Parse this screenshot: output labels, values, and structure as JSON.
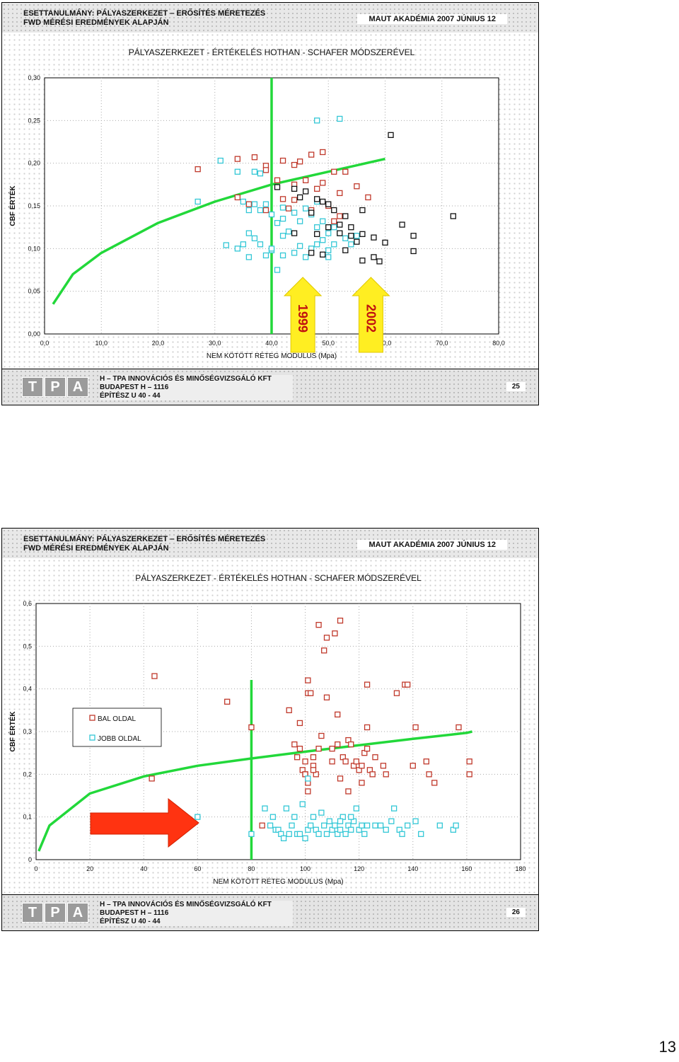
{
  "slides": [
    {
      "header_line1": "ESETTANULMÁNY: PÁLYASZERKEZET – ERŐSÍTÉS MÉRETEZÉS",
      "header_line2": "FWD MÉRÉSI EREDMÉNYEK ALAPJÁN",
      "header_right": "MAUT AKADÉMIA 2007 JÚNIUS 12",
      "footer_line1": "H – TPA INNOVÁCIÓS ÉS MINŐSÉGVIZSGÁLÓ KFT",
      "footer_line2": "BUDAPEST H – 1116",
      "footer_line3": "ÉPÍTÉSZ U 40 - 44",
      "page": "25",
      "logo": [
        "T",
        "P",
        "A"
      ]
    },
    {
      "header_line1": "ESETTANULMÁNY: PÁLYASZERKEZET – ERŐSÍTÉS MÉRETEZÉS",
      "header_line2": "FWD MÉRÉSI EREDMÉNYEK ALAPJÁN",
      "header_right": "MAUT AKADÉMIA 2007 JÚNIUS 12",
      "footer_line1": "H – TPA INNOVÁCIÓS ÉS MINŐSÉGVIZSGÁLÓ KFT",
      "footer_line2": "BUDAPEST H – 1116",
      "footer_line3": "ÉPÍTÉSZ U 40 - 44",
      "page": "26",
      "logo": [
        "T",
        "P",
        "A"
      ]
    }
  ],
  "document_page": "13",
  "colors": {
    "red": "#c0392b",
    "cyan": "#33c7d6",
    "black": "#111111",
    "green": "#22d83a",
    "yellow": "#ffee22",
    "arrow_red": "#ff3311"
  },
  "chart_data": [
    {
      "type": "scatter",
      "title": "PÁLYASZERKEZET - ÉRTÉKELÉS HOTHAN - SCHAFER MÓDSZERÉVEL",
      "xlabel": "NEM KÖTÖTT RÉTEG MODULUS (Mpa)",
      "ylabel": "CBF ÉRTÉK",
      "xlim": [
        0,
        80
      ],
      "ylim": [
        0,
        0.3
      ],
      "xticks": [
        "0,0",
        "10,0",
        "20,0",
        "30,0",
        "40,0",
        "50,0",
        "60,0",
        "70,0",
        "80,0"
      ],
      "yticks": [
        "0,00",
        "0,05",
        "0,10",
        "0,15",
        "0,20",
        "0,25",
        "0,30"
      ],
      "grid": true,
      "annotations": [
        "1999",
        "2002"
      ],
      "vertical_line_x": 40,
      "curve": [
        [
          1.5,
          0.035
        ],
        [
          5,
          0.07
        ],
        [
          10,
          0.095
        ],
        [
          20,
          0.13
        ],
        [
          30,
          0.155
        ],
        [
          40,
          0.175
        ],
        [
          50,
          0.19
        ],
        [
          60,
          0.205
        ]
      ],
      "series": [
        {
          "color": "red",
          "points": [
            [
              27,
              0.193
            ],
            [
              34,
              0.205
            ],
            [
              37,
              0.207
            ],
            [
              39,
              0.197
            ],
            [
              39,
              0.192
            ],
            [
              42,
              0.203
            ],
            [
              44,
              0.198
            ],
            [
              45,
              0.202
            ],
            [
              47,
              0.21
            ],
            [
              49,
              0.213
            ],
            [
              41,
              0.18
            ],
            [
              44,
              0.175
            ],
            [
              46,
              0.18
            ],
            [
              48,
              0.17
            ],
            [
              49,
              0.177
            ],
            [
              51,
              0.19
            ],
            [
              53,
              0.19
            ],
            [
              52,
              0.165
            ],
            [
              55,
              0.173
            ],
            [
              57,
              0.16
            ],
            [
              34,
              0.16
            ],
            [
              36,
              0.152
            ],
            [
              39,
              0.145
            ],
            [
              42,
              0.158
            ],
            [
              43,
              0.147
            ],
            [
              44,
              0.157
            ],
            [
              47,
              0.145
            ],
            [
              50,
              0.15
            ],
            [
              52,
              0.138
            ],
            [
              51,
              0.132
            ]
          ]
        },
        {
          "color": "cyan",
          "points": [
            [
              48,
              0.25
            ],
            [
              52,
              0.252
            ],
            [
              31,
              0.203
            ],
            [
              37,
              0.19
            ],
            [
              38,
              0.188
            ],
            [
              34,
              0.19
            ],
            [
              27,
              0.155
            ],
            [
              35,
              0.155
            ],
            [
              36,
              0.145
            ],
            [
              37,
              0.152
            ],
            [
              38,
              0.145
            ],
            [
              39,
              0.152
            ],
            [
              40,
              0.14
            ],
            [
              41,
              0.13
            ],
            [
              42,
              0.148
            ],
            [
              42,
              0.135
            ],
            [
              43,
              0.12
            ],
            [
              44,
              0.142
            ],
            [
              45,
              0.132
            ],
            [
              46,
              0.147
            ],
            [
              47,
              0.14
            ],
            [
              48,
              0.155
            ],
            [
              48,
              0.125
            ],
            [
              49,
              0.132
            ],
            [
              49,
              0.11
            ],
            [
              50,
              0.118
            ],
            [
              51,
              0.125
            ],
            [
              51,
              0.105
            ],
            [
              52,
              0.118
            ],
            [
              53,
              0.112
            ],
            [
              54,
              0.105
            ],
            [
              55,
              0.115
            ],
            [
              50,
              0.098
            ],
            [
              48,
              0.105
            ],
            [
              47,
              0.1
            ],
            [
              45,
              0.103
            ],
            [
              44,
              0.095
            ],
            [
              42,
              0.092
            ],
            [
              40,
              0.098
            ],
            [
              38,
              0.105
            ],
            [
              37,
              0.112
            ],
            [
              36,
              0.118
            ],
            [
              35,
              0.105
            ],
            [
              34,
              0.1
            ],
            [
              32,
              0.104
            ],
            [
              36,
              0.09
            ],
            [
              39,
              0.092
            ],
            [
              40,
              0.1
            ],
            [
              41,
              0.075
            ],
            [
              42,
              0.115
            ],
            [
              50,
              0.09
            ],
            [
              46,
              0.09
            ]
          ]
        },
        {
          "color": "black",
          "points": [
            [
              61,
              0.233
            ],
            [
              41,
              0.172
            ],
            [
              44,
              0.17
            ],
            [
              45,
              0.16
            ],
            [
              46,
              0.167
            ],
            [
              48,
              0.158
            ],
            [
              49,
              0.155
            ],
            [
              50,
              0.152
            ],
            [
              47,
              0.142
            ],
            [
              51,
              0.145
            ],
            [
              53,
              0.138
            ],
            [
              52,
              0.128
            ],
            [
              54,
              0.125
            ],
            [
              56,
              0.145
            ],
            [
              56,
              0.117
            ],
            [
              58,
              0.113
            ],
            [
              60,
              0.107
            ],
            [
              63,
              0.128
            ],
            [
              65,
              0.115
            ],
            [
              65,
              0.097
            ],
            [
              72,
              0.138
            ],
            [
              50,
              0.125
            ],
            [
              52,
              0.118
            ],
            [
              54,
              0.115
            ],
            [
              55,
              0.108
            ],
            [
              48,
              0.117
            ],
            [
              49,
              0.093
            ],
            [
              53,
              0.098
            ],
            [
              58,
              0.09
            ],
            [
              59,
              0.085
            ],
            [
              56,
              0.086
            ],
            [
              47,
              0.095
            ],
            [
              44,
              0.118
            ]
          ]
        }
      ]
    },
    {
      "type": "scatter",
      "title": "PÁLYASZERKEZET - ÉRTÉKELÉS HOTHAN - SCHAFER MÓDSZERÉVEL",
      "xlabel": "NEM KÖTÖTT RÉTEG MODULUS (Mpa)",
      "ylabel": "CBF ÉRTÉK",
      "xlim": [
        0,
        180
      ],
      "ylim": [
        0,
        0.6
      ],
      "xticks": [
        "0",
        "20",
        "40",
        "60",
        "80",
        "100",
        "120",
        "140",
        "160",
        "180"
      ],
      "yticks": [
        "0",
        "0,1",
        "0,2",
        "0,3",
        "0,4",
        "0,5",
        "0,6"
      ],
      "grid": true,
      "legend": [
        "BAL OLDAL",
        "JOBB OLDAL"
      ],
      "legend_position": "left",
      "vertical_line_x": 80,
      "curve": [
        [
          1,
          0.02
        ],
        [
          5,
          0.08
        ],
        [
          20,
          0.155
        ],
        [
          40,
          0.195
        ],
        [
          60,
          0.22
        ],
        [
          80,
          0.237
        ],
        [
          100,
          0.253
        ],
        [
          120,
          0.268
        ],
        [
          140,
          0.283
        ],
        [
          160,
          0.297
        ],
        [
          162,
          0.3
        ]
      ],
      "series": [
        {
          "name": "BAL OLDAL",
          "color": "red",
          "points": [
            [
              43,
              0.19
            ],
            [
              44,
              0.43
            ],
            [
              71,
              0.37
            ],
            [
              80,
              0.31
            ],
            [
              84,
              0.08
            ],
            [
              94,
              0.35
            ],
            [
              96,
              0.27
            ],
            [
              97,
              0.24
            ],
            [
              98,
              0.32
            ],
            [
              99,
              0.21
            ],
            [
              100,
              0.2
            ],
            [
              101,
              0.42
            ],
            [
              101,
              0.39
            ],
            [
              102,
              0.39
            ],
            [
              103,
              0.24
            ],
            [
              103,
              0.22
            ],
            [
              104,
              0.2
            ],
            [
              105,
              0.55
            ],
            [
              105,
              0.26
            ],
            [
              106,
              0.29
            ],
            [
              107,
              0.49
            ],
            [
              108,
              0.38
            ],
            [
              108,
              0.52
            ],
            [
              110,
              0.26
            ],
            [
              111,
              0.53
            ],
            [
              112,
              0.34
            ],
            [
              113,
              0.56
            ],
            [
              114,
              0.24
            ],
            [
              116,
              0.28
            ],
            [
              117,
              0.27
            ],
            [
              118,
              0.22
            ],
            [
              120,
              0.21
            ],
            [
              121,
              0.22
            ],
            [
              122,
              0.25
            ],
            [
              123,
              0.31
            ],
            [
              123,
              0.41
            ],
            [
              124,
              0.21
            ],
            [
              125,
              0.2
            ],
            [
              126,
              0.24
            ],
            [
              129,
              0.22
            ],
            [
              130,
              0.2
            ],
            [
              134,
              0.39
            ],
            [
              137,
              0.41
            ],
            [
              138,
              0.41
            ],
            [
              140,
              0.22
            ],
            [
              141,
              0.31
            ],
            [
              145,
              0.23
            ],
            [
              146,
              0.2
            ],
            [
              148,
              0.18
            ],
            [
              157,
              0.31
            ],
            [
              161,
              0.23
            ],
            [
              161,
              0.2
            ],
            [
              98,
              0.26
            ],
            [
              100,
              0.23
            ],
            [
              100,
              0.2
            ],
            [
              101,
              0.16
            ],
            [
              101,
              0.18
            ],
            [
              103,
              0.21
            ],
            [
              110,
              0.23
            ],
            [
              112,
              0.27
            ],
            [
              113,
              0.19
            ],
            [
              115,
              0.23
            ],
            [
              116,
              0.16
            ],
            [
              119,
              0.23
            ],
            [
              123,
              0.26
            ],
            [
              121,
              0.18
            ]
          ]
        },
        {
          "name": "JOBB OLDAL",
          "color": "cyan",
          "points": [
            [
              60,
              0.1
            ],
            [
              80,
              0.06
            ],
            [
              85,
              0.12
            ],
            [
              87,
              0.08
            ],
            [
              88,
              0.1
            ],
            [
              89,
              0.07
            ],
            [
              90,
              0.07
            ],
            [
              91,
              0.06
            ],
            [
              92,
              0.05
            ],
            [
              93,
              0.12
            ],
            [
              94,
              0.06
            ],
            [
              95,
              0.08
            ],
            [
              96,
              0.1
            ],
            [
              97,
              0.06
            ],
            [
              98,
              0.06
            ],
            [
              99,
              0.13
            ],
            [
              100,
              0.05
            ],
            [
              101,
              0.07
            ],
            [
              102,
              0.08
            ],
            [
              103,
              0.1
            ],
            [
              104,
              0.07
            ],
            [
              105,
              0.06
            ],
            [
              106,
              0.11
            ],
            [
              107,
              0.08
            ],
            [
              108,
              0.06
            ],
            [
              109,
              0.09
            ],
            [
              110,
              0.07
            ],
            [
              111,
              0.08
            ],
            [
              112,
              0.06
            ],
            [
              113,
              0.07
            ],
            [
              114,
              0.1
            ],
            [
              115,
              0.06
            ],
            [
              116,
              0.08
            ],
            [
              117,
              0.07
            ],
            [
              118,
              0.09
            ],
            [
              119,
              0.12
            ],
            [
              120,
              0.07
            ],
            [
              121,
              0.08
            ],
            [
              122,
              0.06
            ],
            [
              123,
              0.08
            ],
            [
              126,
              0.08
            ],
            [
              128,
              0.08
            ],
            [
              130,
              0.07
            ],
            [
              132,
              0.09
            ],
            [
              133,
              0.12
            ],
            [
              135,
              0.07
            ],
            [
              136,
              0.06
            ],
            [
              138,
              0.08
            ],
            [
              141,
              0.09
            ],
            [
              143,
              0.06
            ],
            [
              150,
              0.08
            ],
            [
              155,
              0.07
            ],
            [
              156,
              0.08
            ],
            [
              113,
              0.09
            ],
            [
              117,
              0.1
            ],
            [
              101,
              0.19
            ]
          ]
        }
      ]
    }
  ]
}
